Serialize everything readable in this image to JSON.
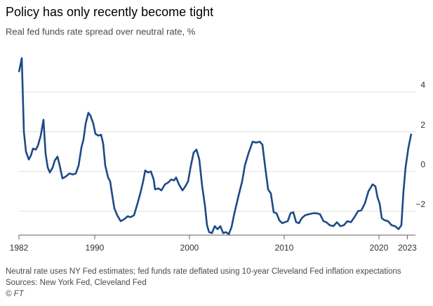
{
  "chart_data": {
    "type": "line",
    "title": "Policy has only recently become tight",
    "subtitle": "Real fed funds rate spread over neutral rate, %",
    "notes": [
      "Neutral rate uses NY Fed estimates; fed funds rate deflated using 10-year Cleveland Fed inflation expectations",
      "Sources: New York Fed, Cleveland Fed",
      "© FT"
    ],
    "xlim": [
      1982,
      2023.41
    ],
    "xticks": [
      1982,
      1990,
      2000,
      2010,
      2020,
      2023
    ],
    "ylim": [
      -3.2,
      5.8
    ],
    "yticks": [
      4,
      2,
      0,
      {
        "value": -2,
        "label": "−2"
      }
    ],
    "grid": true,
    "series": [
      {
        "color": "#1d4a87",
        "x": [
          1982.0,
          1982.3,
          1982.52,
          1982.74,
          1983.04,
          1983.26,
          1983.48,
          1983.78,
          1984.0,
          1984.3,
          1984.59,
          1984.81,
          1985.04,
          1985.26,
          1985.56,
          1985.78,
          1986.07,
          1986.3,
          1986.59,
          1986.96,
          1987.33,
          1987.7,
          1988.0,
          1988.3,
          1988.59,
          1988.81,
          1989.04,
          1989.33,
          1989.56,
          1989.85,
          1990.07,
          1990.37,
          1990.67,
          1990.89,
          1991.11,
          1991.41,
          1991.63,
          1991.85,
          1992.07,
          1992.37,
          1992.74,
          1993.11,
          1993.48,
          1993.78,
          1994.15,
          1994.52,
          1994.81,
          1995.11,
          1995.33,
          1995.63,
          1995.93,
          1996.22,
          1996.37,
          1996.74,
          1997.04,
          1997.41,
          1997.78,
          1998.07,
          1998.37,
          1998.59,
          1998.89,
          1999.26,
          1999.56,
          1999.85,
          2000.15,
          2000.44,
          2000.74,
          2001.04,
          2001.33,
          2001.63,
          2001.85,
          2002.07,
          2002.37,
          2002.67,
          2002.96,
          2003.26,
          2003.56,
          2003.85,
          2004.15,
          2004.44,
          2004.74,
          2005.19,
          2005.56,
          2005.85,
          2006.22,
          2006.67,
          2007.04,
          2007.41,
          2007.7,
          2008.0,
          2008.3,
          2008.59,
          2008.89,
          2009.19,
          2009.48,
          2009.78,
          2010.07,
          2010.37,
          2010.67,
          2010.96,
          2011.26,
          2011.56,
          2011.85,
          2012.22,
          2012.59,
          2013.04,
          2013.41,
          2013.78,
          2014.15,
          2014.44,
          2014.81,
          2015.19,
          2015.56,
          2015.93,
          2016.3,
          2016.67,
          2017.04,
          2017.41,
          2017.78,
          2018.15,
          2018.52,
          2018.89,
          2019.33,
          2019.63,
          2019.85,
          2020.07,
          2020.3,
          2020.59,
          2020.96,
          2021.33,
          2021.7,
          2022.07,
          2022.37,
          2022.59,
          2022.81,
          2023.11,
          2023.41
        ],
        "values": [
          5.0,
          5.7,
          2.0,
          1.0,
          0.6,
          0.8,
          1.15,
          1.1,
          1.3,
          1.8,
          2.6,
          0.9,
          0.2,
          -0.05,
          0.2,
          0.55,
          0.75,
          0.3,
          -0.35,
          -0.25,
          -0.1,
          -0.15,
          -0.1,
          0.3,
          1.2,
          1.6,
          2.4,
          2.95,
          2.8,
          2.4,
          1.9,
          1.8,
          1.85,
          1.4,
          0.3,
          -0.3,
          -0.5,
          -1.2,
          -1.85,
          -2.2,
          -2.5,
          -2.4,
          -2.25,
          -2.3,
          -2.2,
          -1.6,
          -1.1,
          -0.5,
          0.05,
          -0.05,
          0.0,
          -0.4,
          -0.9,
          -0.85,
          -0.95,
          -0.65,
          -0.55,
          -0.4,
          -0.45,
          -0.3,
          -0.65,
          -0.95,
          -0.75,
          -0.5,
          0.3,
          0.95,
          1.1,
          0.6,
          -0.7,
          -1.7,
          -2.7,
          -3.05,
          -3.1,
          -2.75,
          -2.9,
          -2.75,
          -3.1,
          -3.05,
          -3.15,
          -2.8,
          -2.1,
          -1.2,
          -0.5,
          0.3,
          0.9,
          1.5,
          1.45,
          1.5,
          1.35,
          0.2,
          -0.9,
          -1.1,
          -2.05,
          -2.1,
          -2.45,
          -2.6,
          -2.55,
          -2.5,
          -2.1,
          -2.05,
          -2.55,
          -2.6,
          -2.35,
          -2.2,
          -2.15,
          -2.1,
          -2.1,
          -2.15,
          -2.5,
          -2.55,
          -2.7,
          -2.75,
          -2.55,
          -2.75,
          -2.7,
          -2.5,
          -2.55,
          -2.3,
          -2.0,
          -1.95,
          -1.6,
          -1.0,
          -0.65,
          -0.75,
          -1.3,
          -1.6,
          -2.35,
          -2.45,
          -2.5,
          -2.7,
          -2.75,
          -2.9,
          -2.7,
          -1.0,
          0.2,
          1.2,
          1.9
        ]
      }
    ]
  }
}
